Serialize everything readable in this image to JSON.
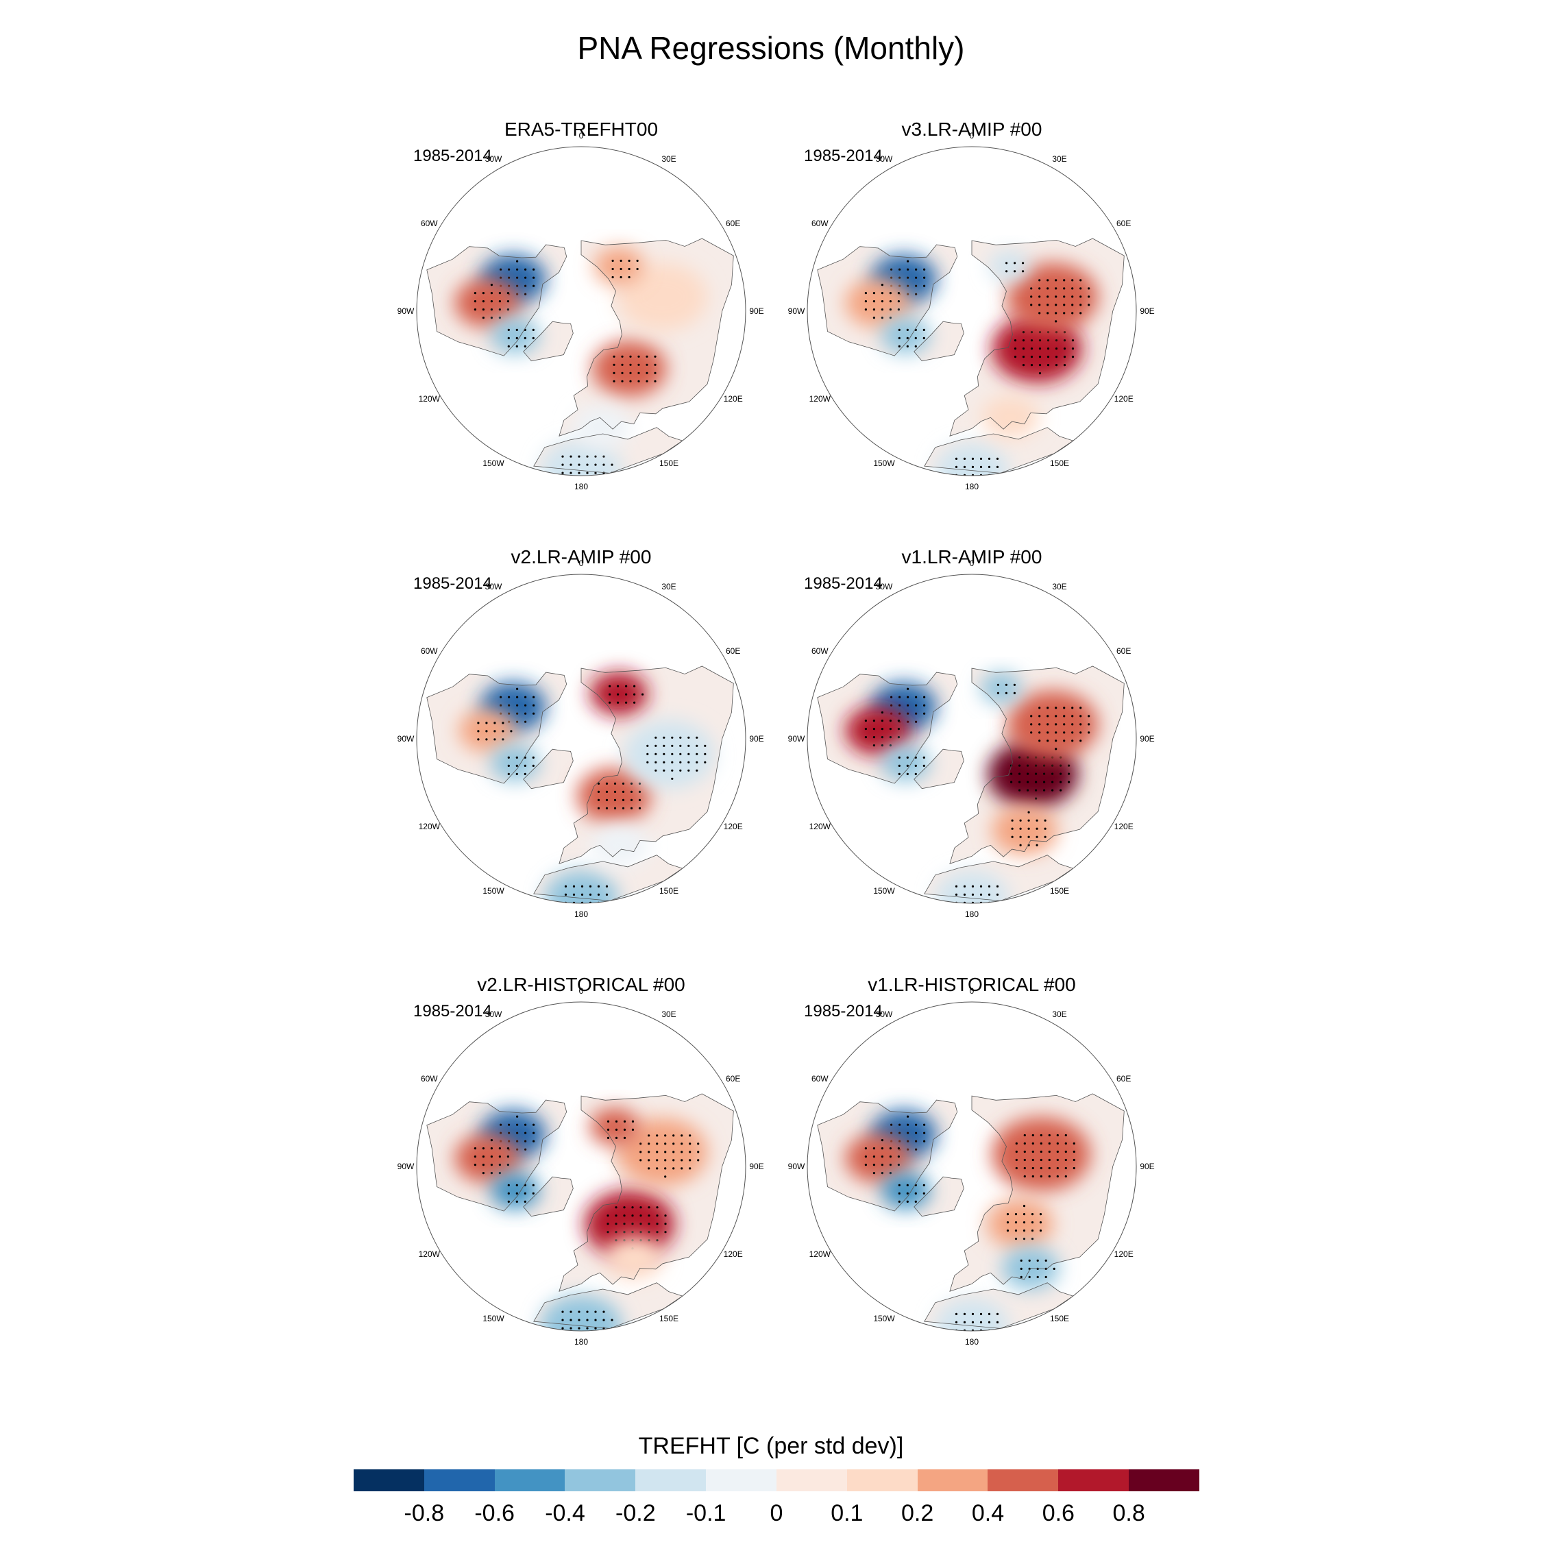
{
  "title": "PNA Regressions (Monthly)",
  "panels": [
    {
      "name": "ERA5-TREFHT00",
      "period": "1985-2014",
      "patches": [
        {
          "lon": -115,
          "lat": 58,
          "v": -0.8,
          "s": 80
        },
        {
          "lon": -95,
          "lat": 50,
          "v": 0.4,
          "s": 80
        },
        {
          "lon": -70,
          "lat": 60,
          "v": -0.4,
          "s": 60
        },
        {
          "lon": 40,
          "lat": 58,
          "v": 0.4,
          "s": 90
        },
        {
          "lon": 100,
          "lat": 55,
          "v": 0.1,
          "s": 110
        },
        {
          "lon": 140,
          "lat": 65,
          "v": 0.2,
          "s": 60
        },
        {
          "lon": 0,
          "lat": 22,
          "v": -0.2,
          "s": 100
        },
        {
          "lon": 10,
          "lat": 40,
          "v": -0.1,
          "s": 70
        }
      ]
    },
    {
      "name": "v3.LR-AMIP  #00",
      "period": "1985-2014",
      "patches": [
        {
          "lon": -115,
          "lat": 58,
          "v": -0.8,
          "s": 80
        },
        {
          "lon": -95,
          "lat": 50,
          "v": 0.2,
          "s": 80
        },
        {
          "lon": -70,
          "lat": 60,
          "v": -0.4,
          "s": 60
        },
        {
          "lon": 60,
          "lat": 58,
          "v": 0.6,
          "s": 110
        },
        {
          "lon": 100,
          "lat": 55,
          "v": 0.4,
          "s": 110
        },
        {
          "lon": 140,
          "lat": 65,
          "v": -0.2,
          "s": 50
        },
        {
          "lon": 0,
          "lat": 22,
          "v": -0.2,
          "s": 90
        },
        {
          "lon": 20,
          "lat": 42,
          "v": 0.1,
          "s": 70
        }
      ]
    },
    {
      "name": "v2.LR-AMIP  #00",
      "period": "1985-2014",
      "patches": [
        {
          "lon": -115,
          "lat": 58,
          "v": -0.8,
          "s": 80
        },
        {
          "lon": -95,
          "lat": 50,
          "v": 0.2,
          "s": 70
        },
        {
          "lon": -70,
          "lat": 60,
          "v": -0.4,
          "s": 60
        },
        {
          "lon": 30,
          "lat": 62,
          "v": 0.4,
          "s": 90
        },
        {
          "lon": 140,
          "lat": 65,
          "v": 0.6,
          "s": 70
        },
        {
          "lon": 80,
          "lat": 52,
          "v": -0.2,
          "s": 110
        },
        {
          "lon": 0,
          "lat": 22,
          "v": -0.4,
          "s": 90
        },
        {
          "lon": 20,
          "lat": 42,
          "v": -0.1,
          "s": 70
        }
      ]
    },
    {
      "name": "v1.LR-AMIP  #00",
      "period": "1985-2014",
      "patches": [
        {
          "lon": -115,
          "lat": 58,
          "v": -0.8,
          "s": 80
        },
        {
          "lon": -95,
          "lat": 50,
          "v": 0.6,
          "s": 80
        },
        {
          "lon": -70,
          "lat": 60,
          "v": -0.4,
          "s": 60
        },
        {
          "lon": 60,
          "lat": 60,
          "v": 0.8,
          "s": 110
        },
        {
          "lon": 100,
          "lat": 55,
          "v": 0.4,
          "s": 110
        },
        {
          "lon": 150,
          "lat": 65,
          "v": -0.4,
          "s": 50
        },
        {
          "lon": 0,
          "lat": 22,
          "v": -0.2,
          "s": 90
        },
        {
          "lon": 30,
          "lat": 45,
          "v": 0.2,
          "s": 80
        }
      ]
    },
    {
      "name": "v2.LR-HISTORICAL  #00",
      "period": "1985-2014",
      "patches": [
        {
          "lon": -115,
          "lat": 58,
          "v": -0.8,
          "s": 80
        },
        {
          "lon": -95,
          "lat": 50,
          "v": 0.4,
          "s": 80
        },
        {
          "lon": -70,
          "lat": 60,
          "v": -0.6,
          "s": 60
        },
        {
          "lon": 40,
          "lat": 58,
          "v": 0.6,
          "s": 110
        },
        {
          "lon": 100,
          "lat": 55,
          "v": 0.2,
          "s": 110
        },
        {
          "lon": 140,
          "lat": 68,
          "v": 0.4,
          "s": 60
        },
        {
          "lon": 0,
          "lat": 22,
          "v": -0.4,
          "s": 100
        },
        {
          "lon": 30,
          "lat": 45,
          "v": 0.1,
          "s": 70
        }
      ]
    },
    {
      "name": "v1.LR-HISTORICAL  #00",
      "period": "1985-2014",
      "patches": [
        {
          "lon": -115,
          "lat": 58,
          "v": -0.8,
          "s": 80
        },
        {
          "lon": -95,
          "lat": 50,
          "v": 0.4,
          "s": 80
        },
        {
          "lon": -70,
          "lat": 60,
          "v": -0.6,
          "s": 60
        },
        {
          "lon": 100,
          "lat": 60,
          "v": 0.4,
          "s": 120
        },
        {
          "lon": 40,
          "lat": 58,
          "v": 0.2,
          "s": 80
        },
        {
          "lon": 30,
          "lat": 40,
          "v": -0.4,
          "s": 70
        },
        {
          "lon": 0,
          "lat": 22,
          "v": -0.2,
          "s": 90
        }
      ]
    }
  ],
  "lon_labels": [
    "180",
    "150E",
    "120E",
    "90E",
    "60E",
    "30E",
    "0",
    "30W",
    "60W",
    "90W",
    "120W",
    "150W"
  ],
  "colorbar": {
    "title": "TREFHT [C (per std dev)]",
    "levels": [
      "-0.8",
      "-0.6",
      "-0.4",
      "-0.2",
      "-0.1",
      "0",
      "0.1",
      "0.2",
      "0.4",
      "0.6",
      "0.8"
    ],
    "colors": [
      "#053061",
      "#2166ac",
      "#4393c3",
      "#92c5de",
      "#d1e5f0",
      "#eef3f7",
      "#fbe9e0",
      "#fddbc7",
      "#f4a582",
      "#d6604d",
      "#b2182b",
      "#67001f"
    ]
  }
}
